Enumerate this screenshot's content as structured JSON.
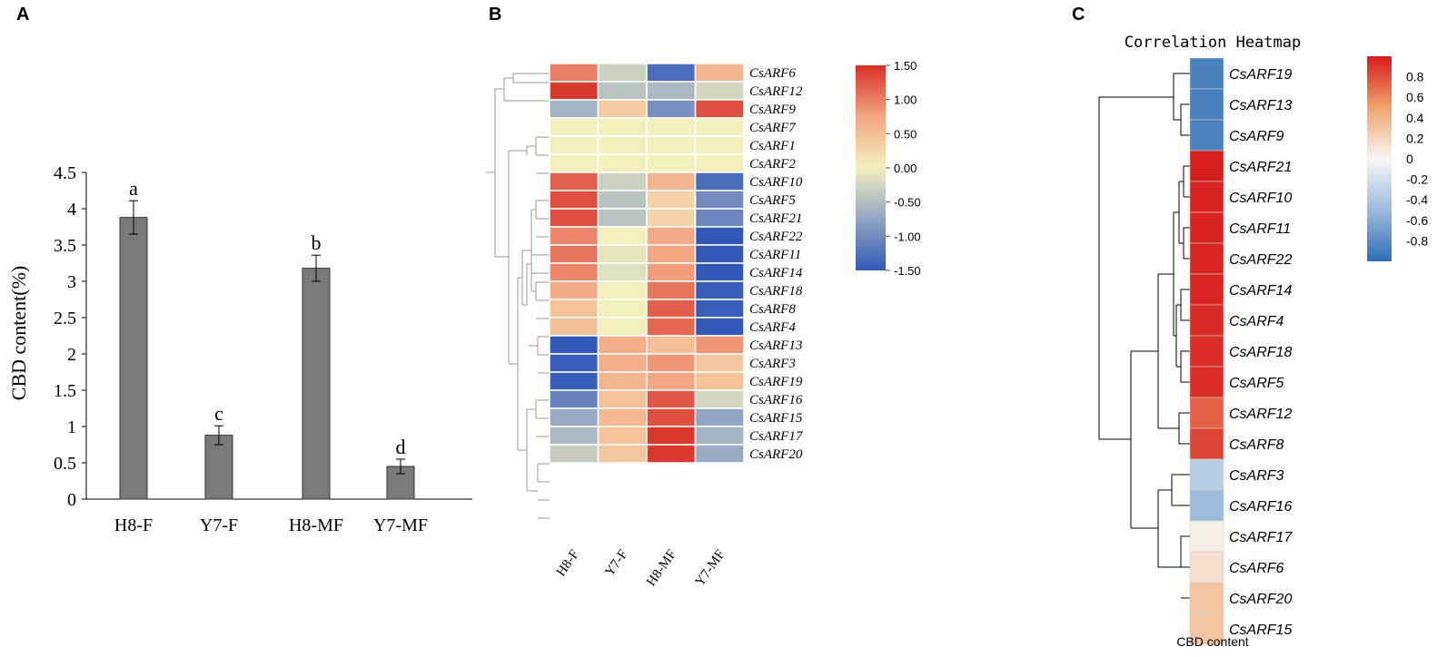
{
  "panels": {
    "a": "A",
    "b": "B",
    "c": "C"
  },
  "chart_data": [
    {
      "type": "bar",
      "panel": "A",
      "title": "",
      "xlabel": "",
      "ylabel": "CBD content(%)",
      "ylim": [
        0,
        4.5
      ],
      "yticks": [
        "0",
        "0.5",
        "1",
        "1.5",
        "2",
        "2.5",
        "3",
        "3.5",
        "4",
        "4.5"
      ],
      "categories": [
        "H8-F",
        "Y7-F",
        "H8-MF",
        "Y7-MF"
      ],
      "values": [
        3.88,
        0.88,
        3.18,
        0.45
      ],
      "errors": [
        0.23,
        0.13,
        0.18,
        0.1
      ],
      "letters": [
        "a",
        "c",
        "b",
        "d"
      ],
      "bar_color": "#7a7a7a"
    },
    {
      "type": "heatmap",
      "panel": "B",
      "columns": [
        "H8-F",
        "Y7-F",
        "H8-MF",
        "Y7-MF"
      ],
      "rows": [
        "CsARF6",
        "CsARF12",
        "CsARF9",
        "CsARF7",
        "CsARF1",
        "CsARF2",
        "CsARF10",
        "CsARF5",
        "CsARF21",
        "CsARF22",
        "CsARF11",
        "CsARF14",
        "CsARF18",
        "CsARF8",
        "CsARF4",
        "CsARF13",
        "CsARF3",
        "CsARF19",
        "CsARF16",
        "CsARF15",
        "CsARF17",
        "CsARF20"
      ],
      "values": [
        [
          1.0,
          -0.3,
          -1.3,
          0.6
        ],
        [
          1.45,
          -0.45,
          -0.55,
          -0.25
        ],
        [
          -0.6,
          0.35,
          -0.95,
          1.3
        ],
        [
          0.0,
          0.0,
          0.0,
          0.0
        ],
        [
          0.0,
          0.0,
          0.0,
          0.0
        ],
        [
          0.0,
          0.0,
          0.0,
          0.0
        ],
        [
          1.2,
          -0.3,
          0.6,
          -1.3
        ],
        [
          1.3,
          -0.45,
          0.3,
          -1.0
        ],
        [
          1.3,
          -0.45,
          0.3,
          -1.05
        ],
        [
          0.95,
          0.0,
          0.7,
          -1.5
        ],
        [
          1.05,
          -0.1,
          0.75,
          -1.5
        ],
        [
          0.95,
          -0.15,
          0.8,
          -1.5
        ],
        [
          0.7,
          0.0,
          1.05,
          -1.45
        ],
        [
          0.45,
          0.0,
          1.2,
          -1.45
        ],
        [
          0.5,
          0.0,
          1.15,
          -1.5
        ],
        [
          -1.5,
          0.65,
          0.5,
          0.85
        ],
        [
          -1.45,
          0.65,
          0.85,
          0.4
        ],
        [
          -1.45,
          0.6,
          0.75,
          0.45
        ],
        [
          -1.1,
          0.45,
          1.25,
          -0.25
        ],
        [
          -0.7,
          0.55,
          1.3,
          -0.75
        ],
        [
          -0.55,
          0.45,
          1.45,
          -0.6
        ],
        [
          -0.35,
          0.4,
          1.45,
          -0.7
        ]
      ],
      "scale": {
        "min": -1.5,
        "max": 1.5,
        "ticks": [
          "1.50",
          "1.00",
          "0.50",
          "0.00",
          "-0.50",
          "-1.00",
          "-1.50"
        ]
      }
    },
    {
      "type": "heatmap",
      "panel": "C",
      "title": "Correlation Heatmap",
      "xlabel": "CBD content",
      "rows": [
        "CsARF19",
        "CsARF13",
        "CsARF9",
        "CsARF21",
        "CsARF10",
        "CsARF11",
        "CsARF22",
        "CsARF14",
        "CsARF4",
        "CsARF18",
        "CsARF5",
        "CsARF12",
        "CsARF8",
        "CsARF3",
        "CsARF16",
        "CsARF17",
        "CsARF6",
        "CsARF20",
        "CsARF15"
      ],
      "values": [
        -0.88,
        -0.89,
        -0.87,
        0.98,
        0.97,
        0.97,
        0.96,
        0.96,
        0.94,
        0.93,
        0.93,
        0.75,
        0.85,
        -0.35,
        -0.5,
        0.05,
        0.15,
        0.3,
        0.3
      ],
      "scale": {
        "min": -1,
        "max": 1,
        "ticks": [
          "0.8",
          "0.6",
          "0.4",
          "0.2",
          "0",
          "-0.2",
          "-0.4",
          "-0.6",
          "-0.8"
        ]
      }
    }
  ]
}
